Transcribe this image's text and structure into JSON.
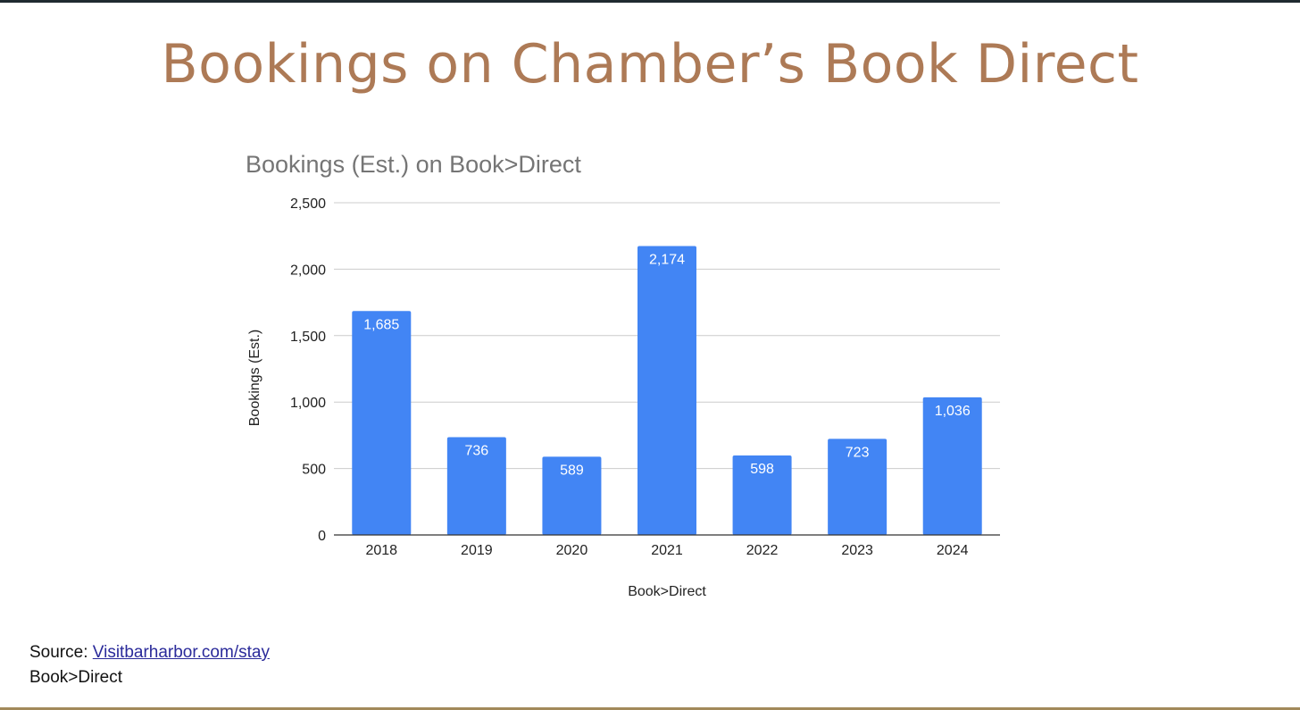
{
  "slide": {
    "title": "Bookings on Chamber’s Book Direct"
  },
  "source": {
    "prefix": "Source:",
    "link_text": "Visitbarharbor.com/stay",
    "second_line": "Book>Direct"
  },
  "colors": {
    "bar": "#4285f4",
    "title": "#ad7a56",
    "grid": "#cccccc"
  },
  "chart_data": {
    "type": "bar",
    "title": "Bookings (Est.) on Book>Direct",
    "xlabel": "Book>Direct",
    "ylabel": "Bookings (Est.)",
    "categories": [
      "2018",
      "2019",
      "2020",
      "2021",
      "2022",
      "2023",
      "2024"
    ],
    "values": [
      1685,
      736,
      589,
      2174,
      598,
      723,
      1036
    ],
    "value_labels": [
      "1,685",
      "736",
      "589",
      "2,174",
      "598",
      "723",
      "1,036"
    ],
    "ylim": [
      0,
      2500
    ],
    "yticks": [
      0,
      500,
      1000,
      1500,
      2000,
      2500
    ],
    "ytick_labels": [
      "0",
      "500",
      "1,000",
      "1,500",
      "2,000",
      "2,500"
    ],
    "grid": true,
    "legend": "none"
  }
}
